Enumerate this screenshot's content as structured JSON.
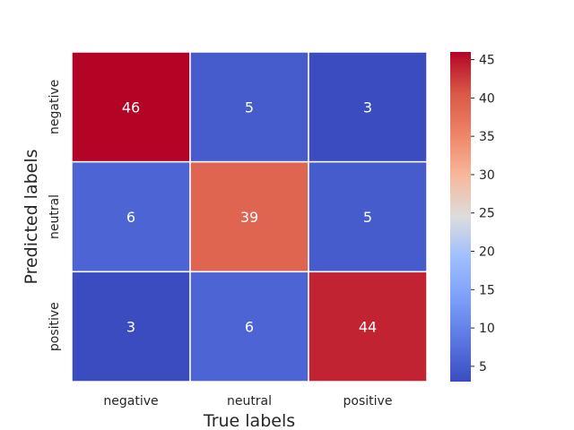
{
  "chart_data": {
    "type": "heatmap",
    "title": "",
    "xlabel": "True labels",
    "ylabel": "Predicted labels",
    "x_categories": [
      "negative",
      "neutral",
      "positive"
    ],
    "y_categories": [
      "negative",
      "neutral",
      "positive"
    ],
    "values": [
      [
        46,
        5,
        3
      ],
      [
        6,
        39,
        5
      ],
      [
        3,
        6,
        44
      ]
    ],
    "colormap": "coolwarm",
    "vmin": 3,
    "vmax": 46,
    "colorbar_ticks": [
      5,
      10,
      15,
      20,
      25,
      30,
      35,
      40,
      45
    ],
    "annotations": true
  }
}
